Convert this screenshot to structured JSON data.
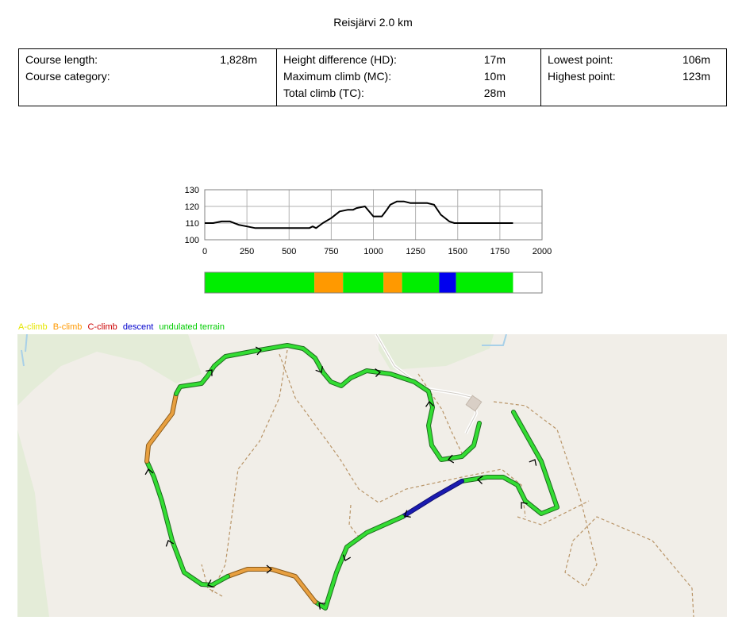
{
  "title": "Reisjärvi 2.0 km",
  "stats": {
    "col1": [
      {
        "label": "Course length:",
        "value": "1,828m"
      },
      {
        "label": "Course category:",
        "value": ""
      }
    ],
    "col2": [
      {
        "label": "Height difference (HD):",
        "value": "17m"
      },
      {
        "label": "Maximum climb (MC):",
        "value": "10m"
      },
      {
        "label": "Total climb (TC):",
        "value": "28m"
      }
    ],
    "col3": [
      {
        "label": "Lowest point:",
        "value": "106m"
      },
      {
        "label": "Highest point:",
        "value": "123m"
      }
    ]
  },
  "legend": [
    {
      "label": "A-climb",
      "color": "#e6e600"
    },
    {
      "label": "B-climb",
      "color": "#ff9900"
    },
    {
      "label": "C-climb",
      "color": "#cc0000"
    },
    {
      "label": "descent",
      "color": "#0000cc"
    },
    {
      "label": "undulated terrain",
      "color": "#00cc00"
    }
  ],
  "chart_data": {
    "type": "line",
    "title": "",
    "xlabel": "",
    "ylabel": "",
    "xlim": [
      0,
      2000
    ],
    "ylim": [
      100,
      130
    ],
    "xticks": [
      "0",
      "250",
      "500",
      "750",
      "1000",
      "1250",
      "1500",
      "1750",
      "2000"
    ],
    "yticks": [
      "100",
      "110",
      "120",
      "130"
    ],
    "grid": true,
    "series": [
      {
        "x": [
          0,
          50,
          100,
          150,
          200,
          250,
          300,
          350,
          400,
          450,
          500,
          550,
          600,
          620,
          640,
          660,
          700,
          750,
          800,
          850,
          880,
          900,
          950,
          1000,
          1050,
          1080,
          1100,
          1140,
          1180,
          1220,
          1260,
          1300,
          1320,
          1360,
          1400,
          1450,
          1480,
          1500,
          1550,
          1600,
          1650,
          1700,
          1750,
          1828
        ],
        "y": [
          110,
          110,
          111,
          111,
          109,
          108,
          107,
          107,
          107,
          107,
          107,
          107,
          107,
          107,
          108,
          107,
          110,
          113,
          117,
          118,
          118,
          119,
          120,
          114,
          114,
          118,
          121,
          123,
          123,
          122,
          122,
          122,
          122,
          121,
          115,
          111,
          110,
          110,
          110,
          110,
          110,
          110,
          110,
          110
        ]
      }
    ],
    "segments": [
      {
        "from": 0,
        "to": 650,
        "type": "undulated terrain",
        "color": "#00ee00"
      },
      {
        "from": 650,
        "to": 820,
        "type": "B-climb",
        "color": "#ff9900"
      },
      {
        "from": 820,
        "to": 1060,
        "type": "undulated terrain",
        "color": "#00ee00"
      },
      {
        "from": 1060,
        "to": 1170,
        "type": "B-climb",
        "color": "#ff9900"
      },
      {
        "from": 1170,
        "to": 1390,
        "type": "undulated terrain",
        "color": "#00ee00"
      },
      {
        "from": 1390,
        "to": 1490,
        "type": "descent",
        "color": "#0000ee"
      },
      {
        "from": 1490,
        "to": 1828,
        "type": "undulated terrain",
        "color": "#00ee00"
      }
    ]
  },
  "map": {
    "background": "#f1eee8",
    "green_area": "#e4ecd8",
    "track_green": "#33dd33",
    "track_orange": "#e8a040",
    "track_blue": "#1a1ab0",
    "path_color": "#b99568"
  }
}
